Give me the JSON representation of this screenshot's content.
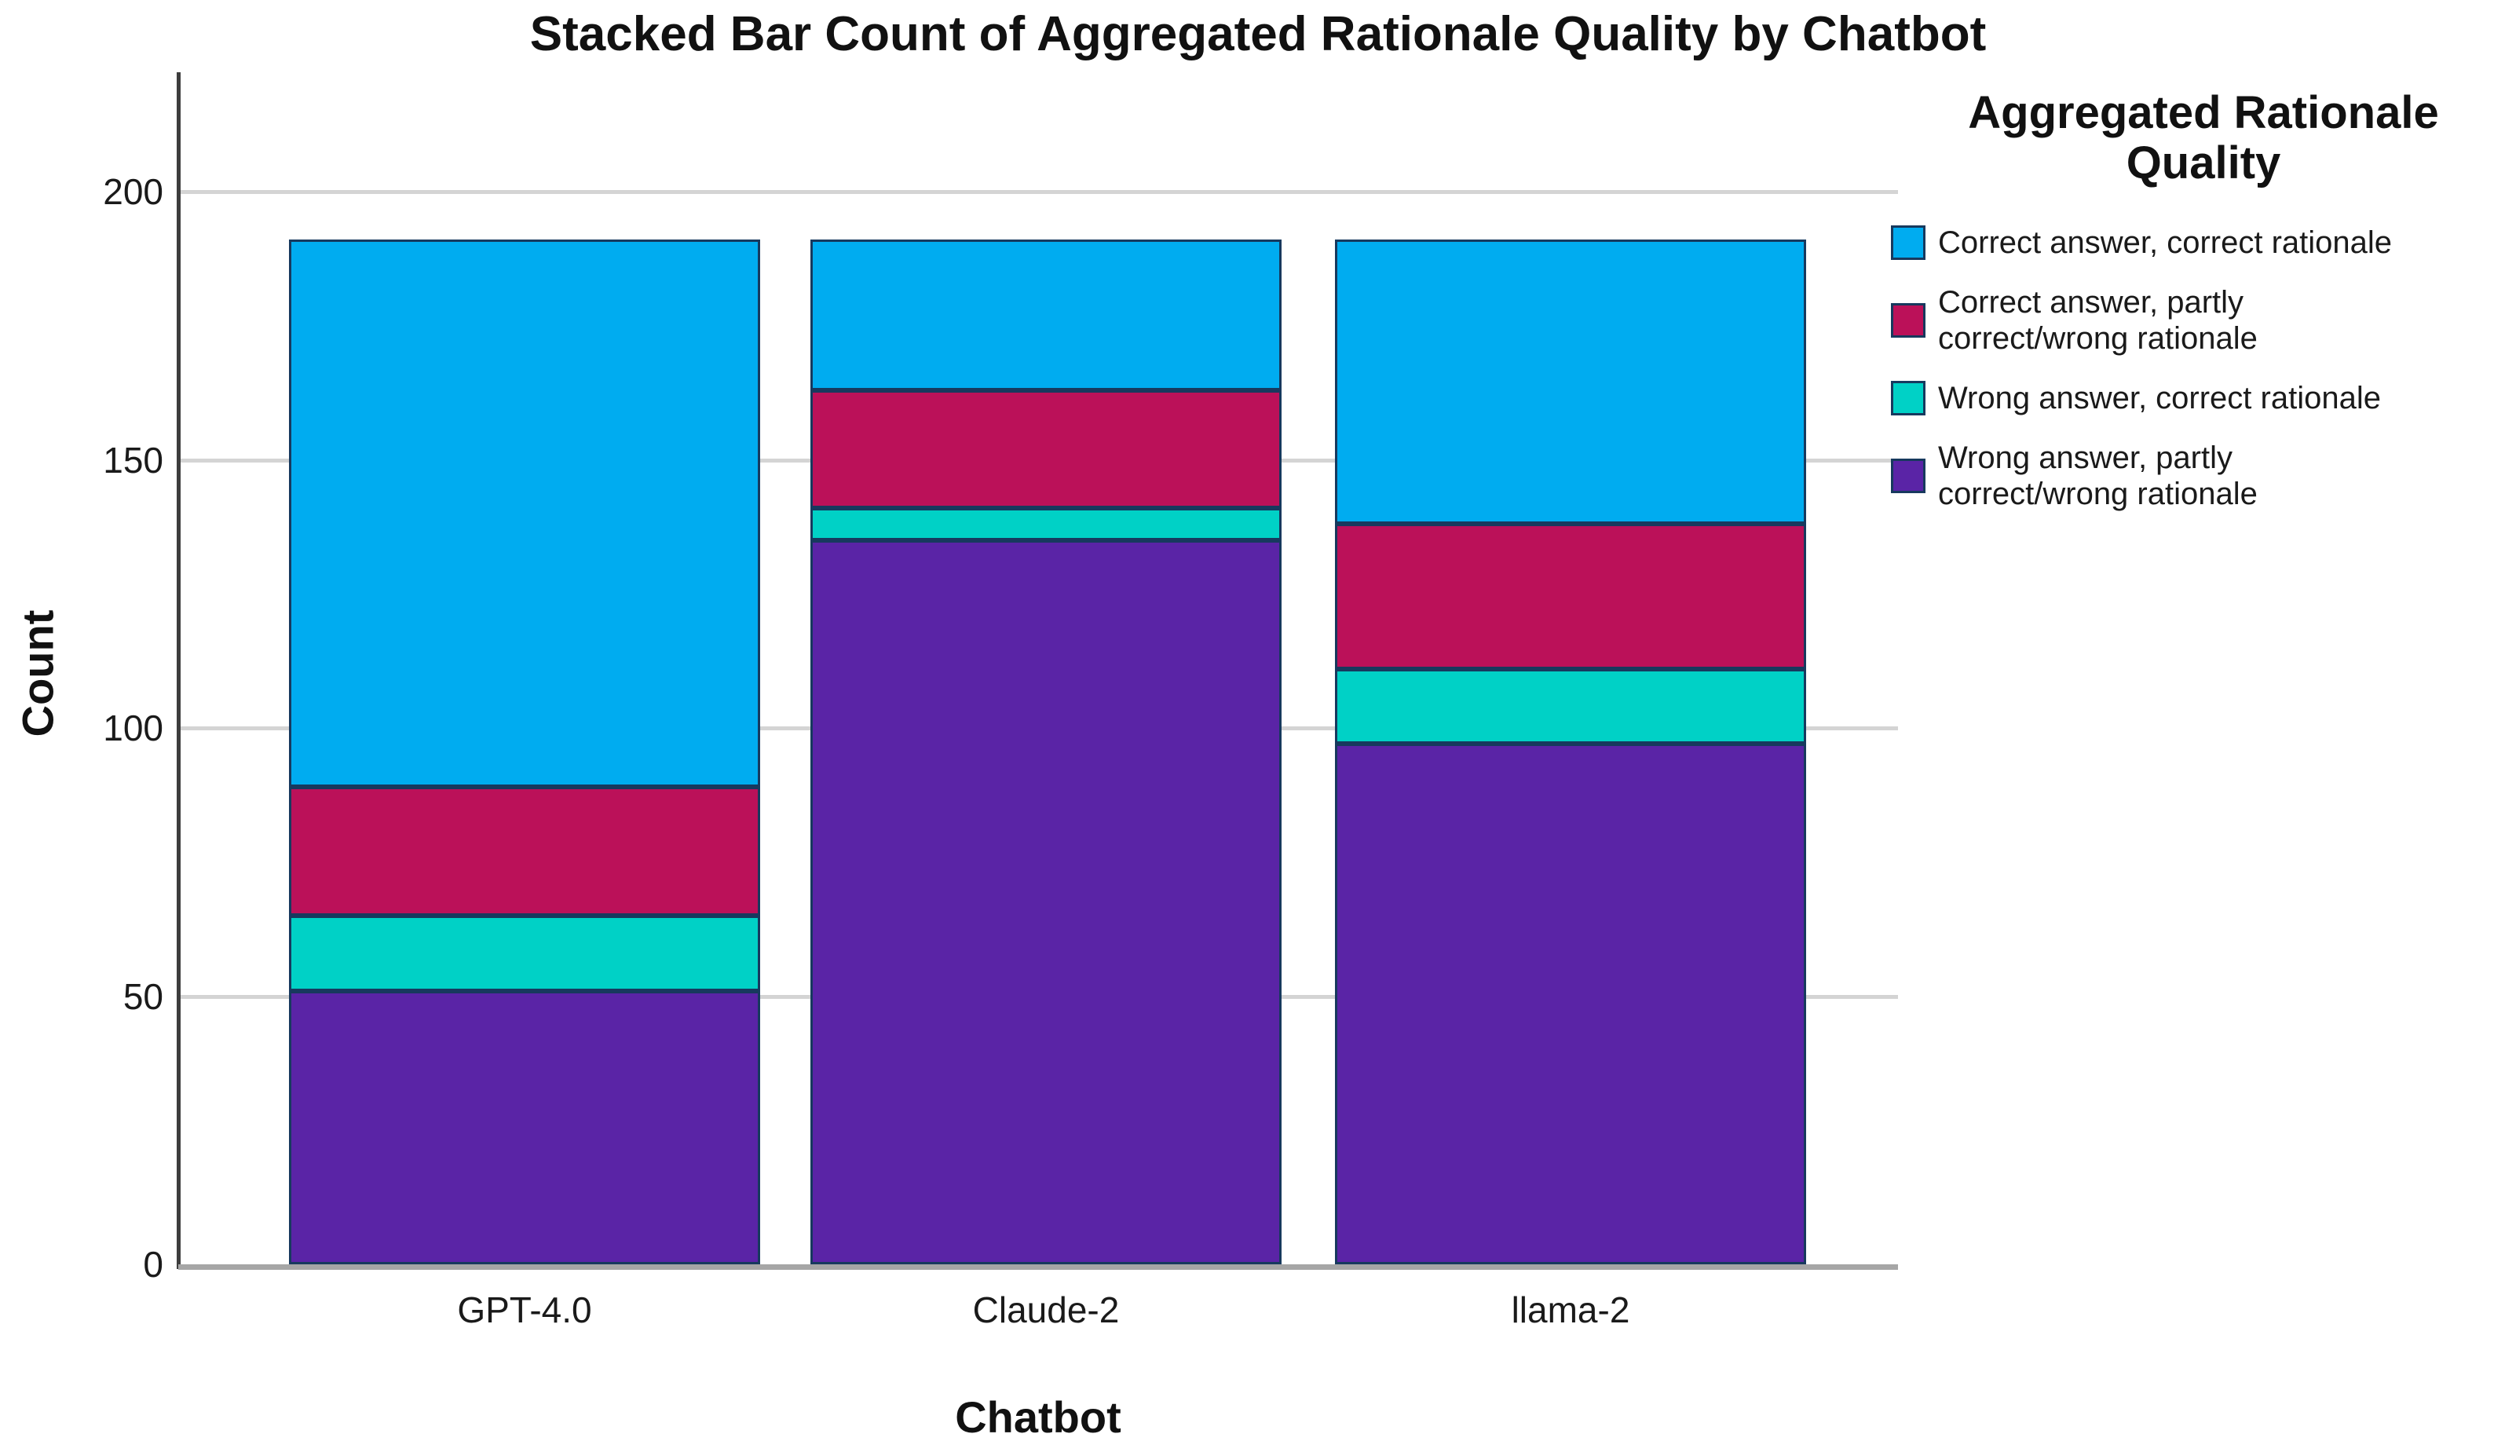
{
  "title": "Stacked Bar Count of Aggregated Rationale Quality by Chatbot",
  "legend": {
    "title_lines": [
      "Aggregated Rationale",
      "Quality"
    ],
    "items": [
      {
        "color": "#00acf0",
        "lines": [
          "Correct answer, correct rationale"
        ]
      },
      {
        "color": "#bb1159",
        "lines": [
          "Correct answer, partly",
          "correct/wrong rationale"
        ]
      },
      {
        "color": "#00d1c6",
        "lines": [
          "Wrong answer, correct rationale"
        ]
      },
      {
        "color": "#5a24a6",
        "lines": [
          "Wrong answer, partly",
          "correct/wrong rationale"
        ]
      }
    ]
  },
  "chart_data": {
    "type": "bar",
    "variant": "stacked",
    "title": "Stacked Bar Count of Aggregated Rationale Quality by Chatbot",
    "xlabel": "Chatbot",
    "ylabel": "Count",
    "categories": [
      "GPT-4.0",
      "Claude-2",
      "llama-2"
    ],
    "series": [
      {
        "name": "Correct answer, correct rationale",
        "color": "#00acf0",
        "values": [
          102,
          28,
          53
        ]
      },
      {
        "name": "Correct answer, partly correct/wrong rationale",
        "color": "#bb1159",
        "values": [
          24,
          22,
          27
        ]
      },
      {
        "name": "Wrong answer, correct rationale",
        "color": "#00d1c6",
        "values": [
          14,
          6,
          14
        ]
      },
      {
        "name": "Wrong answer, partly correct/wrong rationale",
        "color": "#5a24a6",
        "values": [
          51,
          135,
          97
        ]
      }
    ],
    "stack_order": "first series on top, last series at bottom",
    "totals": [
      191,
      191,
      191
    ],
    "y_ticks": [
      0,
      50,
      100,
      150,
      200
    ],
    "ylim": [
      0,
      222
    ],
    "grid": "horizontal gridlines on",
    "legend_position": "right"
  },
  "colors": {
    "segment_border": "#17395e",
    "gridline": "#d4d4d4",
    "baseline": "#a6a6a6",
    "axis_line": "#3d3d3d",
    "text": "#1a1a1a",
    "background": "#ffffff"
  }
}
